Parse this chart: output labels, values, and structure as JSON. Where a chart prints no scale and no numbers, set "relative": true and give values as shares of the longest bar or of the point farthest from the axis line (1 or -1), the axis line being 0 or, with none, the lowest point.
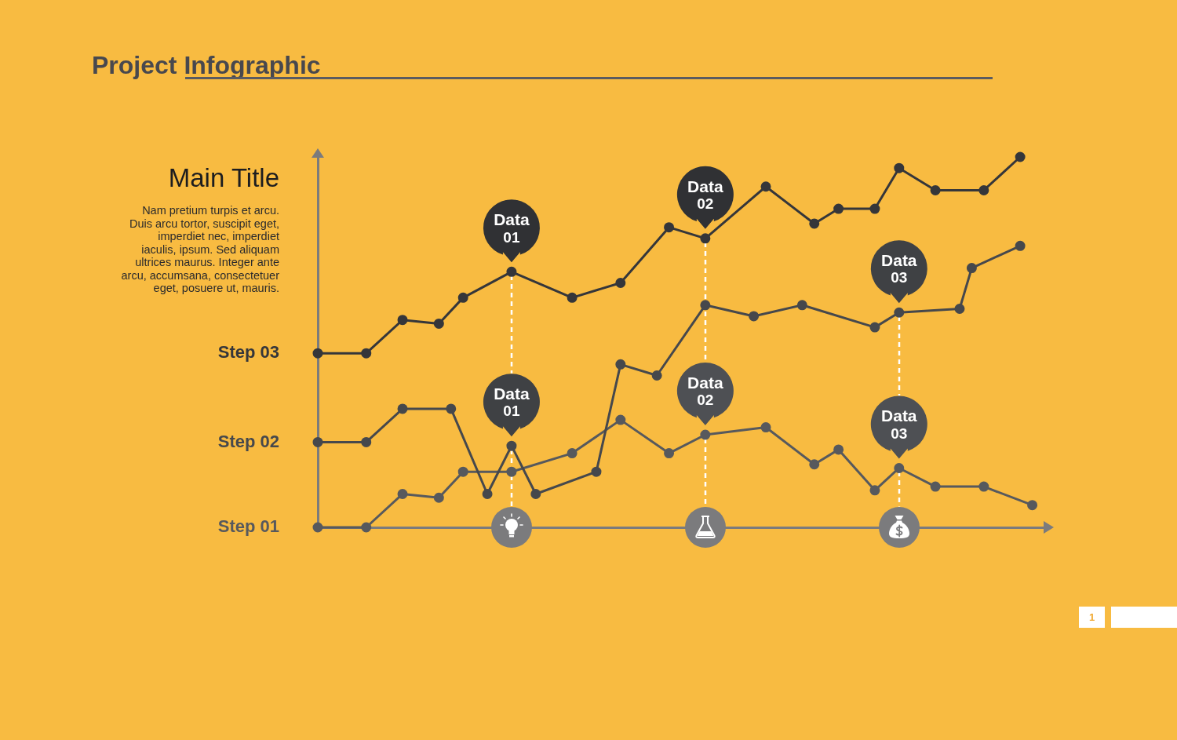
{
  "chart_data": {
    "type": "line",
    "title": "Project Infographic",
    "subtitle": "Main Title",
    "relative": true,
    "categories": [
      null,
      null,
      null,
      null,
      null,
      null,
      null,
      null,
      null,
      null,
      null,
      null,
      null,
      null,
      null,
      null,
      null,
      null,
      null,
      null,
      null,
      null,
      null,
      null,
      null,
      null,
      null,
      null,
      null,
      null,
      null,
      null,
      null,
      null,
      null,
      null,
      null,
      null,
      null,
      null,
      null,
      null,
      null,
      null,
      null,
      null,
      null,
      null,
      null,
      null,
      null,
      null,
      null,
      null,
      null,
      null,
      null,
      null,
      null,
      null,
      null
    ],
    "series": [
      {
        "name": "Step 03",
        "color": "#35363a",
        "values": [
          0.47,
          null,
          null,
          null,
          0.47,
          null,
          null,
          0.56,
          null,
          null,
          0.55,
          null,
          0.62,
          null,
          null,
          null,
          0.69,
          null,
          null,
          null,
          null,
          0.62,
          null,
          null,
          null,
          0.66,
          null,
          null,
          null,
          0.81,
          null,
          null,
          0.78,
          null,
          null,
          null,
          null,
          0.92,
          null,
          null,
          null,
          0.82,
          null,
          0.86,
          null,
          null,
          0.86,
          null,
          0.97,
          null,
          null,
          0.91,
          null,
          null,
          null,
          0.91,
          null,
          null,
          1.0,
          null,
          null
        ]
      },
      {
        "name": "Step 02",
        "color": "#46484c",
        "values": [
          0.23,
          null,
          null,
          null,
          0.23,
          null,
          null,
          0.32,
          null,
          null,
          null,
          0.32,
          null,
          null,
          0.09,
          null,
          0.22,
          null,
          0.09,
          null,
          null,
          null,
          null,
          0.15,
          null,
          0.44,
          null,
          null,
          0.41,
          null,
          null,
          null,
          0.6,
          null,
          null,
          null,
          0.57,
          null,
          null,
          null,
          0.6,
          null,
          null,
          null,
          null,
          null,
          0.54,
          null,
          0.58,
          null,
          null,
          null,
          null,
          0.59,
          0.7,
          null,
          null,
          null,
          0.76,
          null,
          null
        ]
      },
      {
        "name": "Step 01",
        "color": "#57595d",
        "values": [
          0,
          null,
          null,
          null,
          0,
          null,
          null,
          0.09,
          null,
          null,
          0.08,
          null,
          0.15,
          null,
          null,
          null,
          0.15,
          null,
          null,
          null,
          null,
          0.2,
          null,
          null,
          null,
          0.29,
          null,
          null,
          null,
          0.2,
          null,
          null,
          0.25,
          null,
          null,
          null,
          null,
          0.27,
          null,
          null,
          null,
          0.17,
          null,
          0.21,
          null,
          null,
          0.1,
          null,
          0.16,
          null,
          null,
          0.11,
          null,
          null,
          null,
          0.11,
          null,
          null,
          null,
          0.06,
          null
        ]
      }
    ],
    "grid": false,
    "legend": false,
    "marker": "circle",
    "line_style": "solid",
    "annotations": [
      {
        "text": "Data 01",
        "y": 0.69
      },
      {
        "text": "Data 02",
        "y": 0.78
      },
      {
        "text": "Data 03",
        "y": 0.58
      },
      {
        "text": "Data 01",
        "y": 0.22
      },
      {
        "text": "Data 02",
        "y": 0.25
      },
      {
        "text": "Data 03",
        "y": 0.16
      },
      "Nam pretium turpis et arcu.\nDuis arcu tortor, suscipit eget,\nimperdiet nec, imperdiet\niaculis, ipsum. Sed aliquam\nultrices maurus. Integer ante\narcu, accumsana, consectetuer\neget, posuere ut, mauris.",
      "1"
    ]
  }
}
